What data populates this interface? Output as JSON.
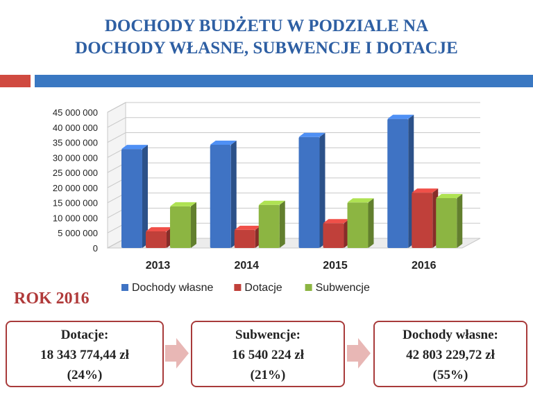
{
  "title": {
    "line1": "DOCHODY BUDŻETU W PODZIALE NA",
    "line2": "DOCHODY WŁASNE, SUBWENCJE I DOTACJE"
  },
  "colors": {
    "title": "#2e5fa3",
    "accent_red": "#d04a40",
    "accent_blue": "#3a78c2",
    "box_border": "#a83a3a",
    "arrow": "#e8b7b5"
  },
  "chart_data": {
    "type": "bar",
    "categories": [
      "2013",
      "2014",
      "2015",
      "2016"
    ],
    "series": [
      {
        "name": "Dochody własne",
        "color": "#3f73c4",
        "values": [
          32800000,
          34200000,
          36800000,
          42803229.72
        ]
      },
      {
        "name": "Dotacje",
        "color": "#c0403a",
        "values": [
          5500000,
          6000000,
          8200000,
          18343774.44
        ]
      },
      {
        "name": "Subwencje",
        "color": "#8cb542",
        "values": [
          13800000,
          14300000,
          15100000,
          16540224
        ]
      }
    ],
    "ylim": [
      0,
      45000000
    ],
    "yticks": [
      0,
      5000000,
      10000000,
      15000000,
      20000000,
      25000000,
      30000000,
      35000000,
      40000000,
      45000000
    ],
    "ytick_labels": [
      "0",
      "5 000 000",
      "10 000 000",
      "15 000 000",
      "20 000 000",
      "25 000 000",
      "30 000 000",
      "35 000 000",
      "40 000 000",
      "45 000 000"
    ],
    "grid": true,
    "legend": "bottom",
    "style": "3d"
  },
  "rok_label": "ROK 2016",
  "boxes": [
    {
      "label": "Dotacje:",
      "amount": "18 343 774,44 zł",
      "percent": "(24%)"
    },
    {
      "label": "Subwencje:",
      "amount": "16 540 224 zł",
      "percent": "(21%)"
    },
    {
      "label": "Dochody własne:",
      "amount": "42 803 229,72 zł",
      "percent": "(55%)"
    }
  ]
}
